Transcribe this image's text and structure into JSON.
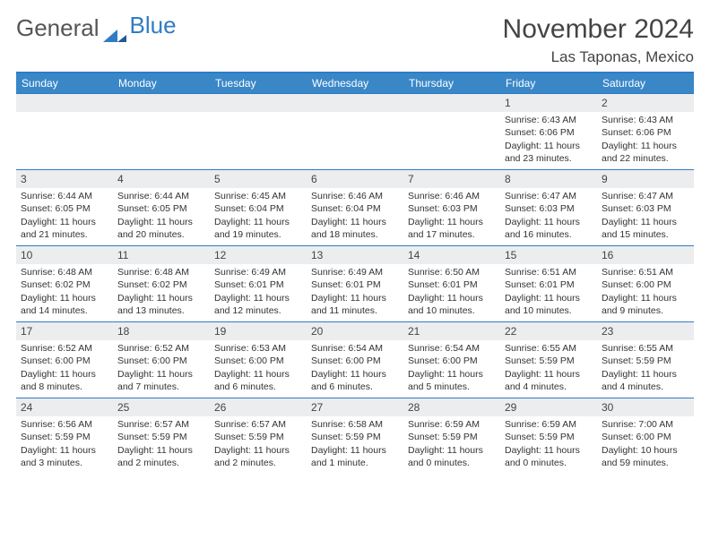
{
  "logo": {
    "part1": "General",
    "part2": "Blue"
  },
  "title": "November 2024",
  "location": "Las Taponas, Mexico",
  "colors": {
    "header_bg": "#3a87c8",
    "border": "#2f7cc4",
    "daynum_bg": "#ecedee",
    "text": "#333333"
  },
  "day_headers": [
    "Sunday",
    "Monday",
    "Tuesday",
    "Wednesday",
    "Thursday",
    "Friday",
    "Saturday"
  ],
  "weeks": [
    [
      {
        "n": "",
        "sunrise": "",
        "sunset": "",
        "daylight": ""
      },
      {
        "n": "",
        "sunrise": "",
        "sunset": "",
        "daylight": ""
      },
      {
        "n": "",
        "sunrise": "",
        "sunset": "",
        "daylight": ""
      },
      {
        "n": "",
        "sunrise": "",
        "sunset": "",
        "daylight": ""
      },
      {
        "n": "",
        "sunrise": "",
        "sunset": "",
        "daylight": ""
      },
      {
        "n": "1",
        "sunrise": "Sunrise: 6:43 AM",
        "sunset": "Sunset: 6:06 PM",
        "daylight": "Daylight: 11 hours and 23 minutes."
      },
      {
        "n": "2",
        "sunrise": "Sunrise: 6:43 AM",
        "sunset": "Sunset: 6:06 PM",
        "daylight": "Daylight: 11 hours and 22 minutes."
      }
    ],
    [
      {
        "n": "3",
        "sunrise": "Sunrise: 6:44 AM",
        "sunset": "Sunset: 6:05 PM",
        "daylight": "Daylight: 11 hours and 21 minutes."
      },
      {
        "n": "4",
        "sunrise": "Sunrise: 6:44 AM",
        "sunset": "Sunset: 6:05 PM",
        "daylight": "Daylight: 11 hours and 20 minutes."
      },
      {
        "n": "5",
        "sunrise": "Sunrise: 6:45 AM",
        "sunset": "Sunset: 6:04 PM",
        "daylight": "Daylight: 11 hours and 19 minutes."
      },
      {
        "n": "6",
        "sunrise": "Sunrise: 6:46 AM",
        "sunset": "Sunset: 6:04 PM",
        "daylight": "Daylight: 11 hours and 18 minutes."
      },
      {
        "n": "7",
        "sunrise": "Sunrise: 6:46 AM",
        "sunset": "Sunset: 6:03 PM",
        "daylight": "Daylight: 11 hours and 17 minutes."
      },
      {
        "n": "8",
        "sunrise": "Sunrise: 6:47 AM",
        "sunset": "Sunset: 6:03 PM",
        "daylight": "Daylight: 11 hours and 16 minutes."
      },
      {
        "n": "9",
        "sunrise": "Sunrise: 6:47 AM",
        "sunset": "Sunset: 6:03 PM",
        "daylight": "Daylight: 11 hours and 15 minutes."
      }
    ],
    [
      {
        "n": "10",
        "sunrise": "Sunrise: 6:48 AM",
        "sunset": "Sunset: 6:02 PM",
        "daylight": "Daylight: 11 hours and 14 minutes."
      },
      {
        "n": "11",
        "sunrise": "Sunrise: 6:48 AM",
        "sunset": "Sunset: 6:02 PM",
        "daylight": "Daylight: 11 hours and 13 minutes."
      },
      {
        "n": "12",
        "sunrise": "Sunrise: 6:49 AM",
        "sunset": "Sunset: 6:01 PM",
        "daylight": "Daylight: 11 hours and 12 minutes."
      },
      {
        "n": "13",
        "sunrise": "Sunrise: 6:49 AM",
        "sunset": "Sunset: 6:01 PM",
        "daylight": "Daylight: 11 hours and 11 minutes."
      },
      {
        "n": "14",
        "sunrise": "Sunrise: 6:50 AM",
        "sunset": "Sunset: 6:01 PM",
        "daylight": "Daylight: 11 hours and 10 minutes."
      },
      {
        "n": "15",
        "sunrise": "Sunrise: 6:51 AM",
        "sunset": "Sunset: 6:01 PM",
        "daylight": "Daylight: 11 hours and 10 minutes."
      },
      {
        "n": "16",
        "sunrise": "Sunrise: 6:51 AM",
        "sunset": "Sunset: 6:00 PM",
        "daylight": "Daylight: 11 hours and 9 minutes."
      }
    ],
    [
      {
        "n": "17",
        "sunrise": "Sunrise: 6:52 AM",
        "sunset": "Sunset: 6:00 PM",
        "daylight": "Daylight: 11 hours and 8 minutes."
      },
      {
        "n": "18",
        "sunrise": "Sunrise: 6:52 AM",
        "sunset": "Sunset: 6:00 PM",
        "daylight": "Daylight: 11 hours and 7 minutes."
      },
      {
        "n": "19",
        "sunrise": "Sunrise: 6:53 AM",
        "sunset": "Sunset: 6:00 PM",
        "daylight": "Daylight: 11 hours and 6 minutes."
      },
      {
        "n": "20",
        "sunrise": "Sunrise: 6:54 AM",
        "sunset": "Sunset: 6:00 PM",
        "daylight": "Daylight: 11 hours and 6 minutes."
      },
      {
        "n": "21",
        "sunrise": "Sunrise: 6:54 AM",
        "sunset": "Sunset: 6:00 PM",
        "daylight": "Daylight: 11 hours and 5 minutes."
      },
      {
        "n": "22",
        "sunrise": "Sunrise: 6:55 AM",
        "sunset": "Sunset: 5:59 PM",
        "daylight": "Daylight: 11 hours and 4 minutes."
      },
      {
        "n": "23",
        "sunrise": "Sunrise: 6:55 AM",
        "sunset": "Sunset: 5:59 PM",
        "daylight": "Daylight: 11 hours and 4 minutes."
      }
    ],
    [
      {
        "n": "24",
        "sunrise": "Sunrise: 6:56 AM",
        "sunset": "Sunset: 5:59 PM",
        "daylight": "Daylight: 11 hours and 3 minutes."
      },
      {
        "n": "25",
        "sunrise": "Sunrise: 6:57 AM",
        "sunset": "Sunset: 5:59 PM",
        "daylight": "Daylight: 11 hours and 2 minutes."
      },
      {
        "n": "26",
        "sunrise": "Sunrise: 6:57 AM",
        "sunset": "Sunset: 5:59 PM",
        "daylight": "Daylight: 11 hours and 2 minutes."
      },
      {
        "n": "27",
        "sunrise": "Sunrise: 6:58 AM",
        "sunset": "Sunset: 5:59 PM",
        "daylight": "Daylight: 11 hours and 1 minute."
      },
      {
        "n": "28",
        "sunrise": "Sunrise: 6:59 AM",
        "sunset": "Sunset: 5:59 PM",
        "daylight": "Daylight: 11 hours and 0 minutes."
      },
      {
        "n": "29",
        "sunrise": "Sunrise: 6:59 AM",
        "sunset": "Sunset: 5:59 PM",
        "daylight": "Daylight: 11 hours and 0 minutes."
      },
      {
        "n": "30",
        "sunrise": "Sunrise: 7:00 AM",
        "sunset": "Sunset: 6:00 PM",
        "daylight": "Daylight: 10 hours and 59 minutes."
      }
    ]
  ]
}
